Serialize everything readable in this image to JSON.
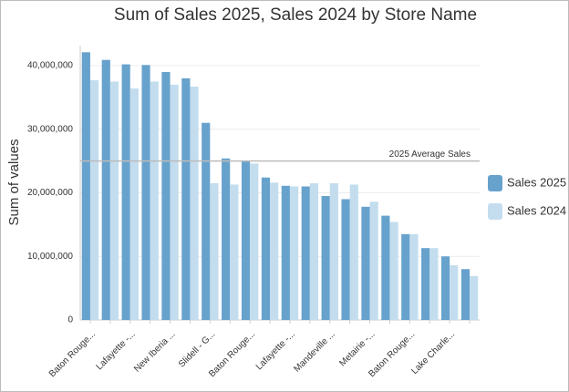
{
  "chart_data": {
    "type": "bar",
    "title": "Sum of Sales 2025, Sales 2024 by Store Name",
    "y_label": "Sum of values",
    "categories": [
      "Baton Rouge...",
      null,
      "Lafayette -...",
      null,
      "New Iberia ...",
      null,
      "Slidell - G...",
      null,
      "Baton Rouge...",
      null,
      "Lafayette -...",
      null,
      "Mandeville ...",
      null,
      "Metairie -...",
      null,
      "Baton Rouge...",
      null,
      "Lake Charle...",
      null
    ],
    "series": [
      {
        "name": "Sales 2025",
        "color": "#67a2cd",
        "values": [
          42100000,
          40900000,
          40200000,
          40100000,
          39000000,
          38000000,
          31000000,
          25400000,
          25000000,
          22400000,
          21100000,
          21000000,
          19500000,
          19000000,
          17800000,
          16400000,
          13500000,
          11300000,
          10000000,
          8000000
        ]
      },
      {
        "name": "Sales 2024",
        "color": "#c3ddee",
        "values": [
          37700000,
          37500000,
          36400000,
          37500000,
          37000000,
          36700000,
          21500000,
          21300000,
          24600000,
          21600000,
          21000000,
          21500000,
          21500000,
          21300000,
          18600000,
          15400000,
          13500000,
          11300000,
          8600000,
          6900000
        ]
      }
    ],
    "ylim": [
      0,
      43150000
    ],
    "yticks": [
      0,
      {
        "value": 10000000,
        "label": "10,000,000"
      },
      {
        "value": 20000000,
        "label": "20,000,000"
      },
      {
        "value": 30000000,
        "label": "30,000,000"
      },
      {
        "value": 40000000,
        "label": "40,000,000"
      }
    ],
    "grid": true,
    "legend": "right",
    "reference_lines": [
      {
        "value": 25000000,
        "label": "2025 Average Sales"
      }
    ]
  }
}
